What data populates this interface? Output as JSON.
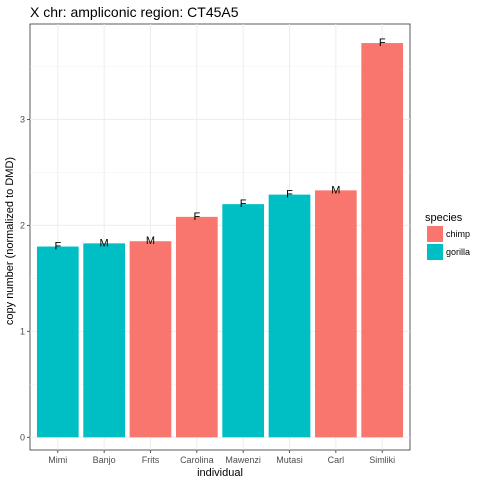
{
  "chart_data": {
    "type": "bar",
    "title": "X chr: ampliconic region: CT45A5",
    "xlabel": "individual",
    "ylabel": "copy number (normalized to DMD)",
    "ylim": [
      -0.12,
      3.9
    ],
    "yticks": [
      0,
      1,
      2,
      3
    ],
    "grid": true,
    "categories": [
      "Mimi",
      "Banjo",
      "Frits",
      "Carolina",
      "Mawenzi",
      "Mutasi",
      "Carl",
      "Simliki"
    ],
    "values": [
      1.8,
      1.83,
      1.85,
      2.08,
      2.2,
      2.29,
      2.33,
      3.72
    ],
    "bar_labels": [
      "F",
      "M",
      "M",
      "F",
      "F",
      "F",
      "M",
      "F"
    ],
    "species": [
      "gorilla",
      "gorilla",
      "chimp",
      "chimp",
      "gorilla",
      "gorilla",
      "chimp",
      "chimp"
    ],
    "legend": {
      "title": "species",
      "position": "right",
      "entries": [
        {
          "name": "chimp",
          "color": "#F8766D"
        },
        {
          "name": "gorilla",
          "color": "#00BFC4"
        }
      ]
    }
  }
}
